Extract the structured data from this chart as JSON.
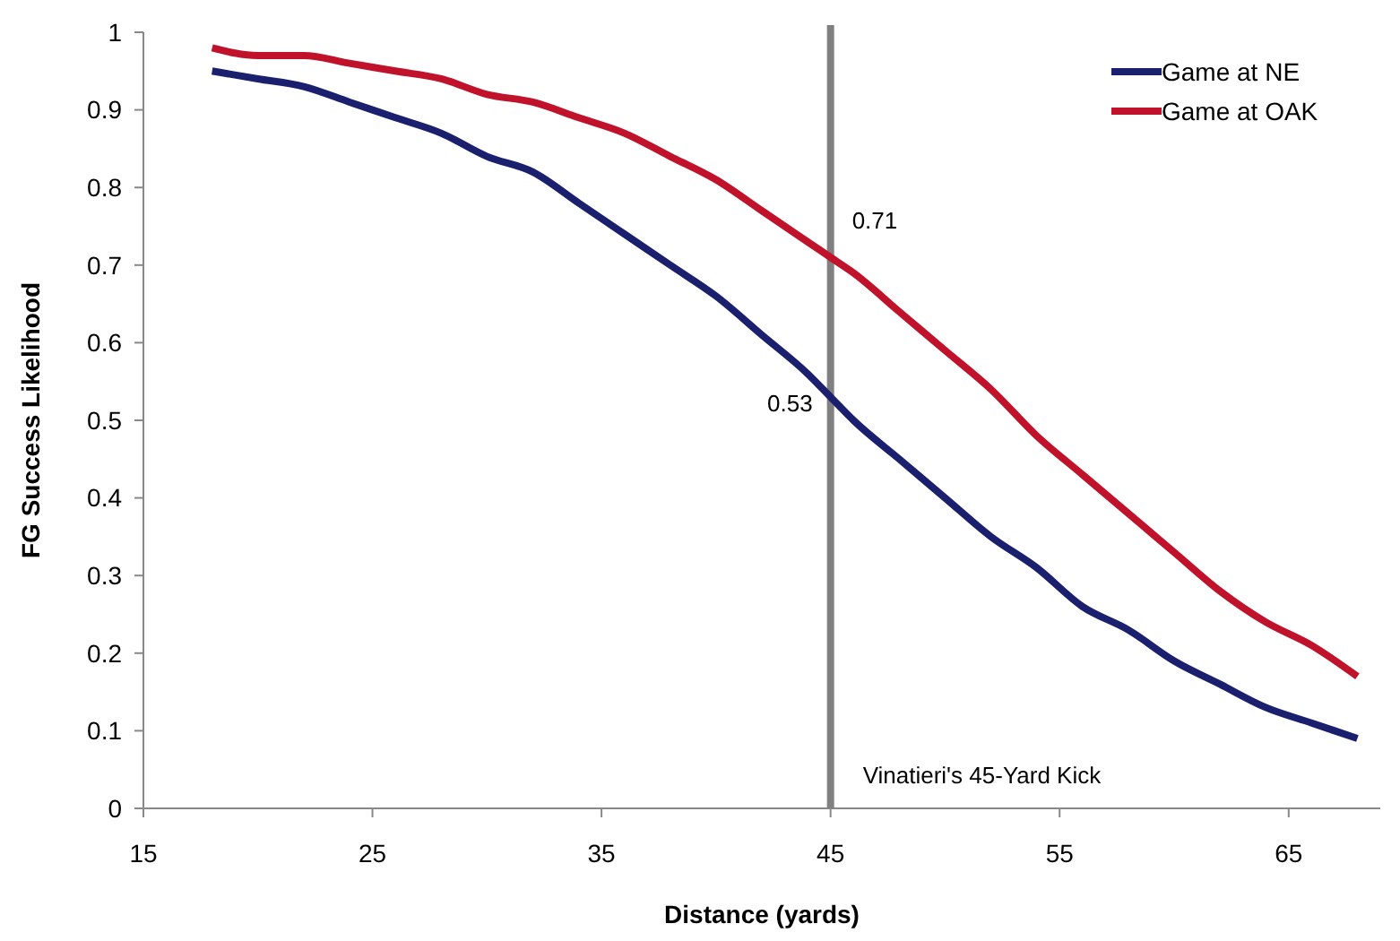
{
  "chart_data": {
    "type": "line",
    "xlabel": "Distance (yards)",
    "ylabel": "FG Success Likelihood",
    "x": [
      18,
      20,
      22,
      24,
      26,
      28,
      30,
      32,
      34,
      36,
      38,
      40,
      42,
      44,
      45,
      46,
      48,
      50,
      52,
      54,
      56,
      58,
      60,
      62,
      64,
      66,
      68
    ],
    "series": [
      {
        "name": "Game at NE",
        "color": "#1a1f6e",
        "values": [
          0.95,
          0.94,
          0.93,
          0.91,
          0.89,
          0.87,
          0.84,
          0.82,
          0.78,
          0.74,
          0.7,
          0.66,
          0.61,
          0.56,
          0.53,
          0.5,
          0.45,
          0.4,
          0.35,
          0.31,
          0.26,
          0.23,
          0.19,
          0.16,
          0.13,
          0.11,
          0.09
        ]
      },
      {
        "name": "Game at OAK",
        "color": "#c0122b",
        "values": [
          0.98,
          0.97,
          0.97,
          0.96,
          0.95,
          0.94,
          0.92,
          0.91,
          0.89,
          0.87,
          0.84,
          0.81,
          0.77,
          0.73,
          0.71,
          0.69,
          0.64,
          0.59,
          0.54,
          0.48,
          0.43,
          0.38,
          0.33,
          0.28,
          0.24,
          0.21,
          0.17
        ]
      }
    ],
    "xlim": [
      15,
      69
    ],
    "xticks": [
      15,
      25,
      35,
      45,
      55,
      65
    ],
    "ylim": [
      0,
      1
    ],
    "yticks": [
      0,
      0.1,
      0.2,
      0.3,
      0.4,
      0.5,
      0.6,
      0.7,
      0.8,
      0.9,
      1
    ],
    "ref_lines": [
      {
        "axis": "x",
        "value": 45,
        "label": "Vinatieri's 45-Yard Kick",
        "color": "#808080"
      }
    ],
    "annotations": [
      {
        "text": "0.71",
        "x": 45,
        "y": 0.71
      },
      {
        "text": "0.53",
        "x": 45,
        "y": 0.53
      }
    ],
    "legend": "top right",
    "grid": false,
    "marker": "none",
    "line_style": "solid"
  }
}
